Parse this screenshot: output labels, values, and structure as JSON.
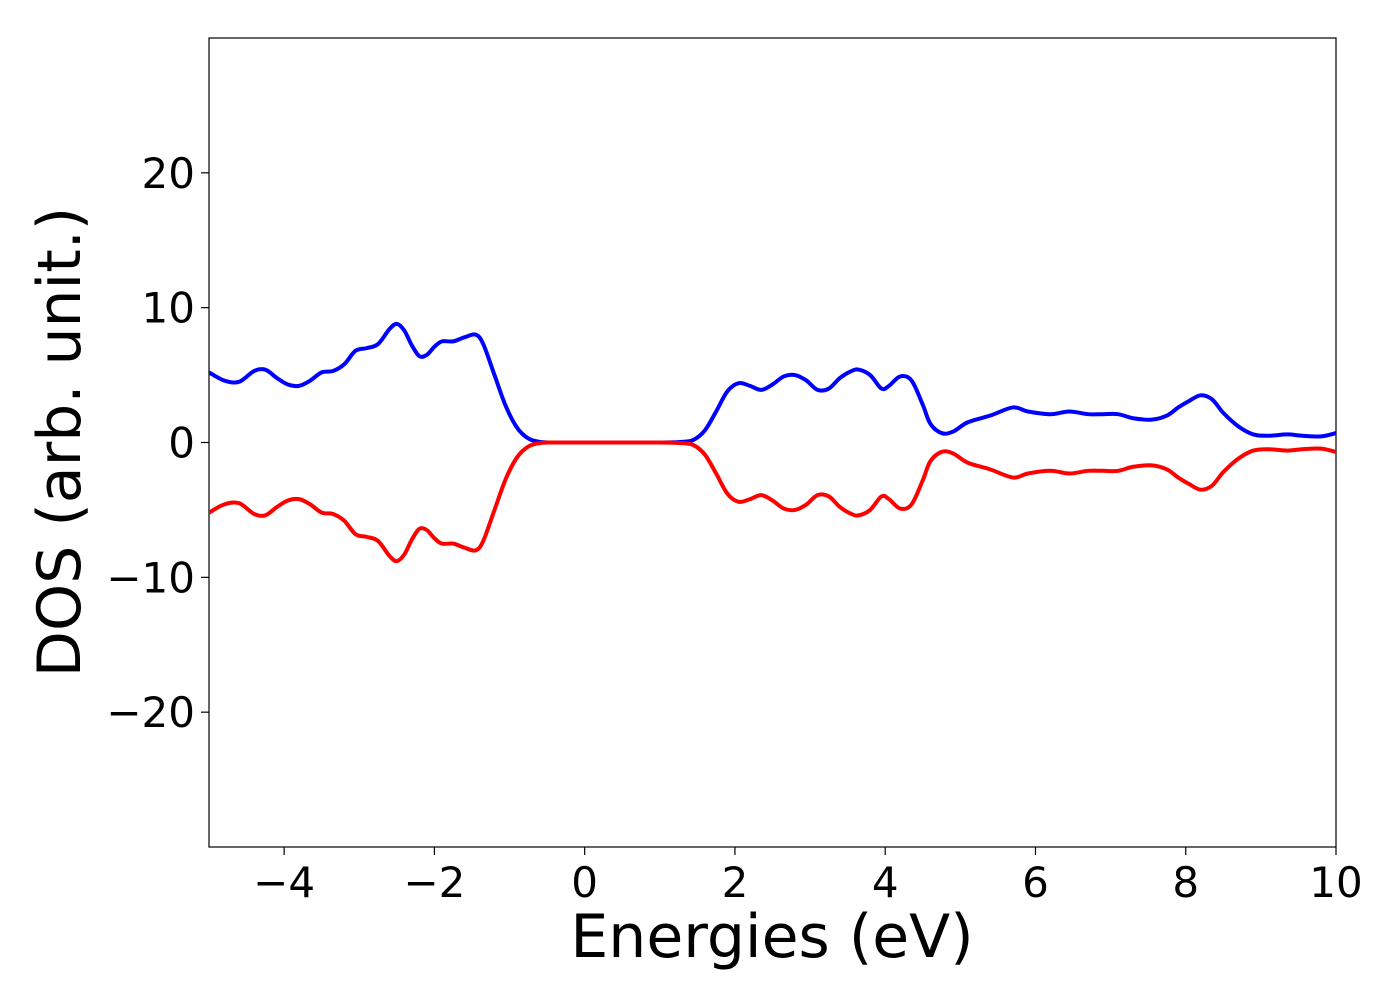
{
  "chart_data": {
    "type": "line",
    "title": "",
    "xlabel": "Energies (eV)",
    "ylabel": "DOS (arb. unit.)",
    "xlim": [
      -5,
      10
    ],
    "ylim": [
      -30,
      30
    ],
    "grid": false,
    "x_ticks": [
      -4,
      -2,
      0,
      2,
      4,
      6,
      8,
      10
    ],
    "x_tick_labels": [
      "−4",
      "−2",
      "0",
      "2",
      "4",
      "6",
      "8",
      "10"
    ],
    "y_ticks": [
      -20,
      -10,
      0,
      10,
      20
    ],
    "y_tick_labels": [
      "−20",
      "−10",
      "0",
      "10",
      "20"
    ],
    "series": [
      {
        "color": "#0000ff",
        "x": [
          -5.0,
          -4.8,
          -4.6,
          -4.4,
          -4.25,
          -4.1,
          -3.95,
          -3.8,
          -3.65,
          -3.5,
          -3.35,
          -3.2,
          -3.05,
          -2.9,
          -2.75,
          -2.6,
          -2.5,
          -2.4,
          -2.3,
          -2.2,
          -2.1,
          -2.0,
          -1.9,
          -1.75,
          -1.6,
          -1.45,
          -1.35,
          -1.2,
          -1.05,
          -0.9,
          -0.75,
          -0.6,
          -0.45,
          -0.3,
          0.0,
          0.5,
          1.0,
          1.3,
          1.45,
          1.6,
          1.75,
          1.9,
          2.05,
          2.2,
          2.35,
          2.5,
          2.65,
          2.8,
          2.95,
          3.1,
          3.25,
          3.4,
          3.55,
          3.65,
          3.8,
          3.95,
          4.05,
          4.2,
          4.35,
          4.5,
          4.6,
          4.75,
          4.9,
          5.1,
          5.4,
          5.7,
          5.9,
          6.2,
          6.45,
          6.7,
          6.9,
          7.1,
          7.3,
          7.55,
          7.75,
          7.9,
          8.05,
          8.2,
          8.35,
          8.5,
          8.7,
          8.9,
          9.1,
          9.35,
          9.55,
          9.8,
          10.0
        ],
        "y": [
          5.2,
          4.6,
          4.5,
          5.3,
          5.4,
          4.8,
          4.3,
          4.2,
          4.6,
          5.2,
          5.3,
          5.8,
          6.8,
          7.0,
          7.3,
          8.4,
          8.8,
          8.3,
          7.2,
          6.4,
          6.5,
          7.1,
          7.5,
          7.5,
          7.8,
          8.0,
          7.3,
          5.0,
          2.7,
          1.1,
          0.3,
          0.05,
          0.0,
          0.0,
          0.0,
          0.0,
          0.0,
          0.05,
          0.2,
          0.9,
          2.3,
          3.8,
          4.4,
          4.2,
          3.9,
          4.3,
          4.9,
          5.0,
          4.6,
          3.9,
          4.0,
          4.8,
          5.3,
          5.4,
          5.0,
          4.0,
          4.2,
          4.9,
          4.6,
          2.8,
          1.4,
          0.7,
          0.8,
          1.5,
          2.0,
          2.6,
          2.3,
          2.1,
          2.3,
          2.1,
          2.1,
          2.1,
          1.8,
          1.7,
          2.0,
          2.6,
          3.1,
          3.5,
          3.2,
          2.2,
          1.2,
          0.6,
          0.5,
          0.6,
          0.5,
          0.45,
          0.7
        ]
      },
      {
        "color": "#ff0000",
        "x": [
          -5.0,
          -4.8,
          -4.6,
          -4.4,
          -4.25,
          -4.1,
          -3.95,
          -3.8,
          -3.65,
          -3.5,
          -3.35,
          -3.2,
          -3.05,
          -2.9,
          -2.75,
          -2.6,
          -2.5,
          -2.4,
          -2.3,
          -2.2,
          -2.1,
          -2.0,
          -1.9,
          -1.75,
          -1.6,
          -1.45,
          -1.35,
          -1.2,
          -1.05,
          -0.9,
          -0.75,
          -0.6,
          -0.45,
          -0.3,
          0.0,
          0.5,
          1.0,
          1.3,
          1.45,
          1.6,
          1.75,
          1.9,
          2.05,
          2.2,
          2.35,
          2.5,
          2.65,
          2.8,
          2.95,
          3.1,
          3.25,
          3.4,
          3.55,
          3.65,
          3.8,
          3.95,
          4.05,
          4.2,
          4.35,
          4.5,
          4.6,
          4.75,
          4.9,
          5.1,
          5.4,
          5.7,
          5.9,
          6.2,
          6.45,
          6.7,
          6.9,
          7.1,
          7.3,
          7.55,
          7.75,
          7.9,
          8.05,
          8.2,
          8.35,
          8.5,
          8.7,
          8.9,
          9.1,
          9.35,
          9.55,
          9.8,
          10.0
        ],
        "y": [
          -5.2,
          -4.6,
          -4.5,
          -5.3,
          -5.4,
          -4.8,
          -4.3,
          -4.2,
          -4.6,
          -5.2,
          -5.3,
          -5.8,
          -6.8,
          -7.0,
          -7.3,
          -8.4,
          -8.8,
          -8.3,
          -7.2,
          -6.4,
          -6.5,
          -7.1,
          -7.5,
          -7.5,
          -7.8,
          -8.0,
          -7.3,
          -5.0,
          -2.7,
          -1.1,
          -0.3,
          -0.05,
          0.0,
          0.0,
          0.0,
          0.0,
          0.0,
          -0.05,
          -0.2,
          -0.9,
          -2.3,
          -3.8,
          -4.4,
          -4.2,
          -3.9,
          -4.3,
          -4.9,
          -5.0,
          -4.6,
          -3.9,
          -4.0,
          -4.8,
          -5.3,
          -5.4,
          -5.0,
          -4.0,
          -4.2,
          -4.9,
          -4.6,
          -2.8,
          -1.4,
          -0.7,
          -0.8,
          -1.5,
          -2.0,
          -2.6,
          -2.3,
          -2.1,
          -2.3,
          -2.1,
          -2.1,
          -2.1,
          -1.8,
          -1.7,
          -2.0,
          -2.6,
          -3.1,
          -3.5,
          -3.2,
          -2.2,
          -1.2,
          -0.6,
          -0.5,
          -0.6,
          -0.5,
          -0.45,
          -0.7
        ]
      }
    ]
  }
}
